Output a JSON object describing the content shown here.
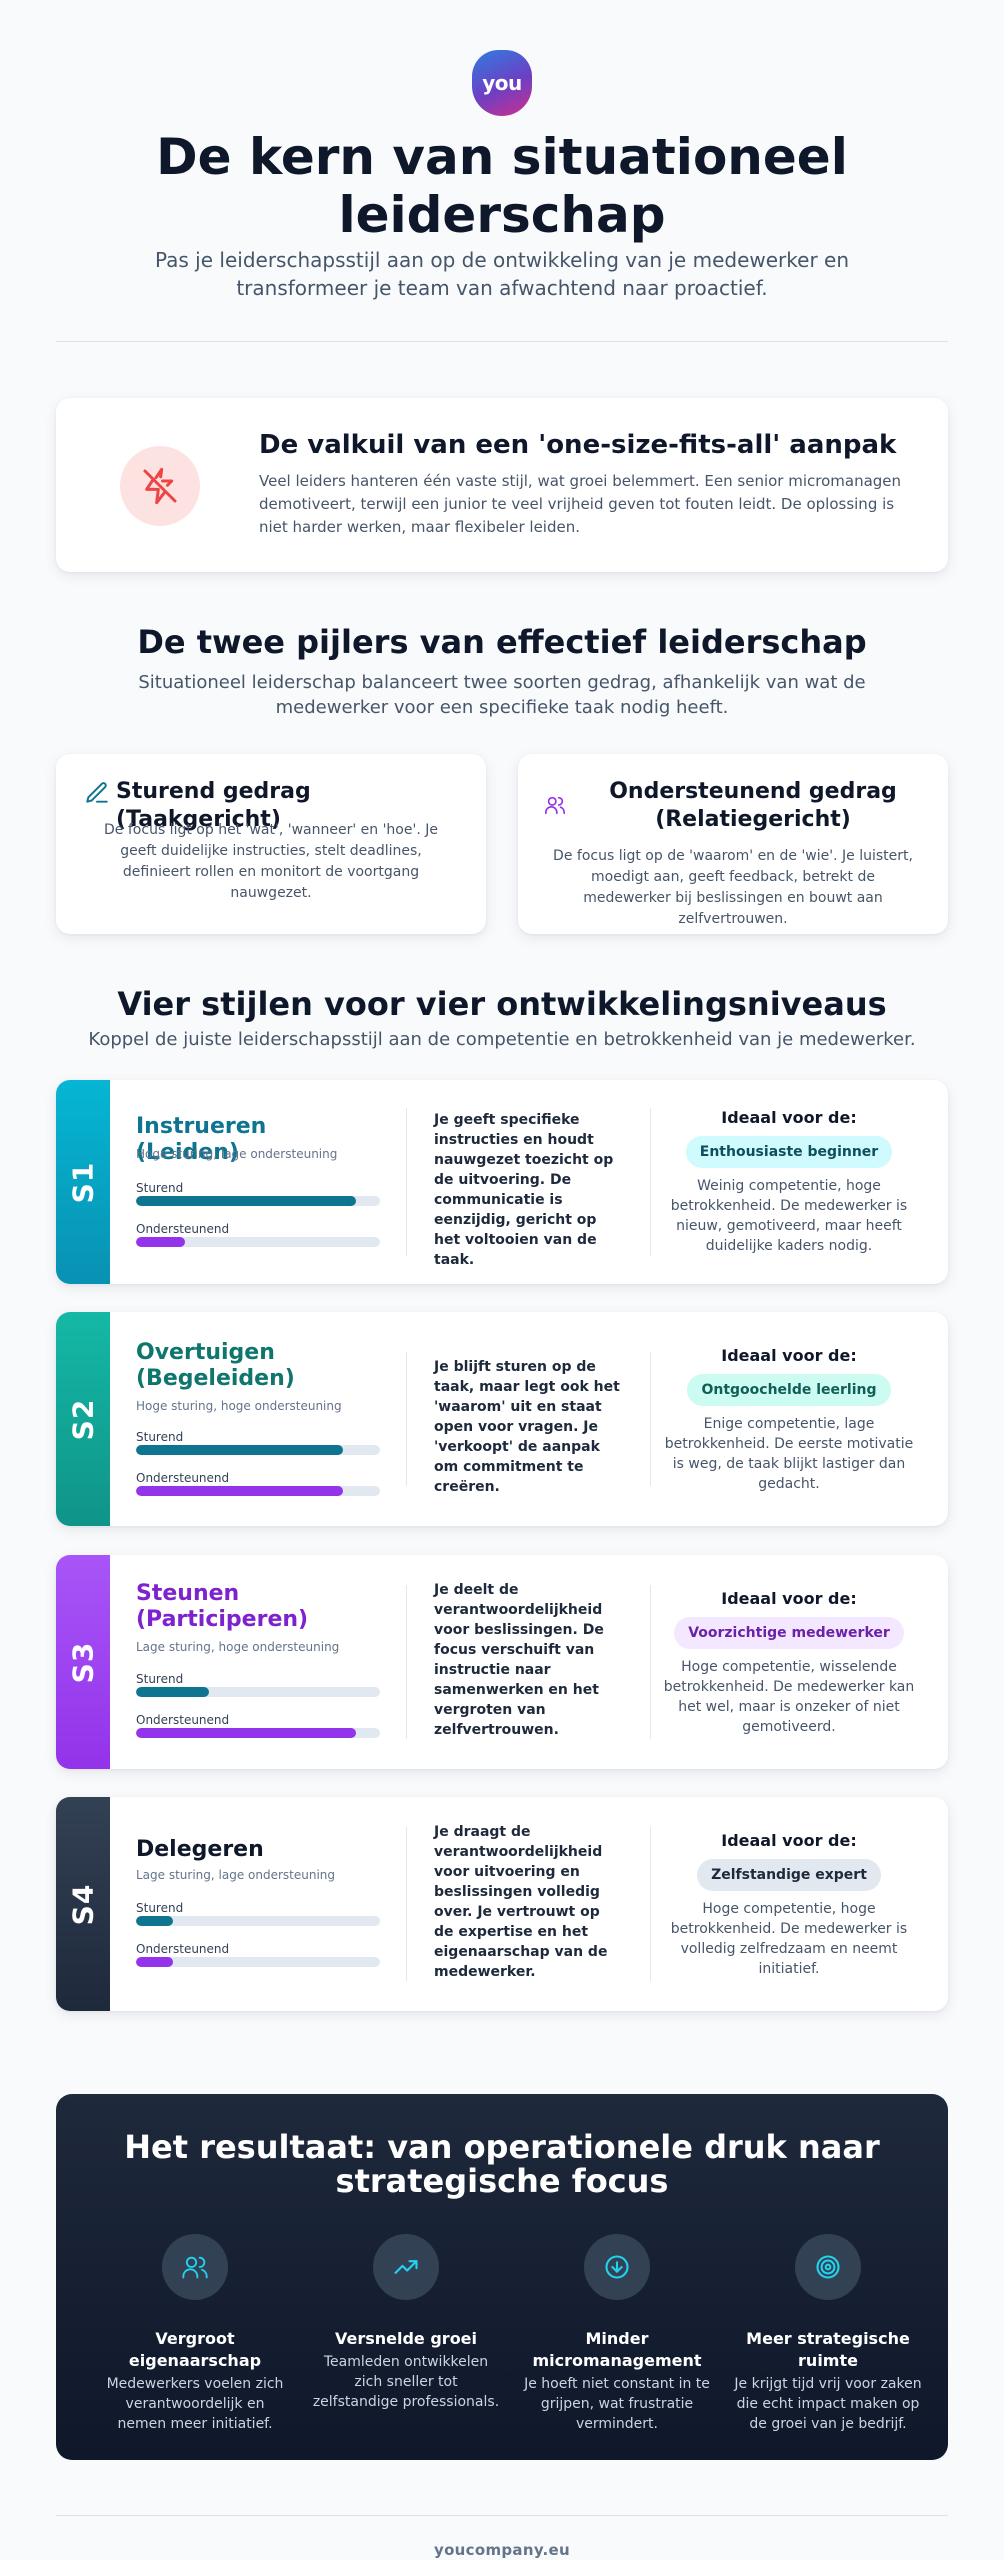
{
  "header": {
    "logo_text": "you",
    "title": "De kern van situationeel leiderschap",
    "subtitle": "Pas je leiderschapsstijl aan op de ontwikkeling van je medewerker en transformeer je team van afwachtend naar proactief."
  },
  "pitfall": {
    "icon": "zap-off-icon",
    "title": "De valkuil van een 'one-size-fits-all' aanpak",
    "text": "Veel leiders hanteren één vaste stijl, wat groei belemmert. Een senior micromanagen demotiveert, terwijl een junior te veel vrijheid geven tot fouten leidt. De oplossing is niet harder werken, maar flexibeler leiden."
  },
  "pillars": {
    "title": "De twee pijlers van effectief leiderschap",
    "subtitle": "Situationeel leiderschap balanceert twee soorten gedrag, afhankelijk van wat de medewerker voor een specifieke taak nodig heeft.",
    "items": [
      {
        "icon": "pencil-icon",
        "title": "Sturend gedrag (Taakgericht)",
        "text": "De focus ligt op het 'wat', 'wanneer' en 'hoe'. Je geeft duidelijke instructies, stelt deadlines, definieert rollen en monitort de voortgang nauwgezet."
      },
      {
        "icon": "users-icon",
        "title": "Ondersteunend gedrag (Relatiegericht)",
        "text": "De focus ligt op de 'waarom' en de 'wie'. Je luistert, moedigt aan, geeft feedback, betrekt de medewerker bij beslissingen en bouwt aan zelfvertrouwen."
      }
    ]
  },
  "styles": {
    "title": "Vier stijlen voor vier ontwikkelingsniveaus",
    "subtitle": "Koppel de juiste leiderschapsstijl aan de competentie en betrokkenheid van je medewerker.",
    "directive_label": "Sturend",
    "supportive_label": "Ondersteunend",
    "ideal_label": "Ideaal voor de:",
    "items": [
      {
        "code": "S1",
        "name": "Instrueren (Leiden)",
        "tagline": "Hoge sturing, lage ondersteuning",
        "directive": 0.9,
        "supportive": 0.2,
        "description": "Je geeft specifieke instructies en houdt nauwgezet toezicht op de uitvoering. De communicatie is eenzijdig, gericht op het voltooien van de taak.",
        "ideal_for": "Enthousiaste beginner",
        "ideal_text": "Weinig competentie, hoge betrokkenheid. De medewerker is nieuw, gemotiveerd, maar heeft duidelijke kaders nodig.",
        "accent": "#0891b2",
        "pill_bg": "#cffafe",
        "pill_fg": "#0e4f5c"
      },
      {
        "code": "S2",
        "name": "Overtuigen (Begeleiden)",
        "tagline": "Hoge sturing, hoge ondersteuning",
        "directive": 0.85,
        "supportive": 0.85,
        "description": "Je blijft sturen op de taak, maar legt ook het 'waarom' uit en staat open voor vragen. Je 'verkoopt' de aanpak om commitment te creëren.",
        "ideal_for": "Ontgoochelde leerling",
        "ideal_text": "Enige competentie, lage betrokkenheid. De eerste motivatie is weg, de taak blijkt lastiger dan gedacht.",
        "accent": "#0f766e",
        "pill_bg": "#ccfbf1",
        "pill_fg": "#115e59"
      },
      {
        "code": "S3",
        "name": "Steunen (Participeren)",
        "tagline": "Lage sturing, hoge ondersteuning",
        "directive": 0.3,
        "supportive": 0.9,
        "description": "Je deelt de verantwoordelijkheid voor beslissingen. De focus verschuift van instructie naar samenwerken en het vergroten van zelfvertrouwen.",
        "ideal_for": "Voorzichtige medewerker",
        "ideal_text": "Hoge competentie, wisselende betrokkenheid. De medewerker kan het wel, maar is onzeker of niet gemotiveerd.",
        "accent": "#7e22ce",
        "pill_bg": "#f3e8ff",
        "pill_fg": "#6b21a8"
      },
      {
        "code": "S4",
        "name": "Delegeren",
        "tagline": "Lage sturing, lage ondersteuning",
        "directive": 0.15,
        "supportive": 0.15,
        "description": "Je draagt de verantwoordelijkheid voor uitvoering en beslissingen volledig over. Je vertrouwt op de expertise en het eigenaarschap van de medewerker.",
        "ideal_for": "Zelfstandige expert",
        "ideal_text": "Hoge competentie, hoge betrokkenheid. De medewerker is volledig zelfredzaam en neemt initiatief.",
        "accent": "#1e293b",
        "pill_bg": "#e2e8f0",
        "pill_fg": "#1e293b"
      }
    ]
  },
  "result": {
    "title": "Het resultaat: van operationele druk naar strategische focus",
    "items": [
      {
        "icon": "users-icon",
        "title": "Vergroot eigenaarschap",
        "text": "Medewerkers voelen zich verantwoordelijk en nemen meer initiatief."
      },
      {
        "icon": "trending-up-icon",
        "title": "Versnelde groei",
        "text": "Teamleden ontwikkelen zich sneller tot zelfstandige professionals."
      },
      {
        "icon": "arrow-down-circle-icon",
        "title": "Minder micromanagement",
        "text": "Je hoeft niet constant in te grijpen, wat frustratie vermindert."
      },
      {
        "icon": "target-icon",
        "title": "Meer strategische ruimte",
        "text": "Je krijgt tijd vrij voor zaken die echt impact maken op de groei van je bedrijf."
      }
    ]
  },
  "footer": {
    "text": "youcompany.eu"
  }
}
